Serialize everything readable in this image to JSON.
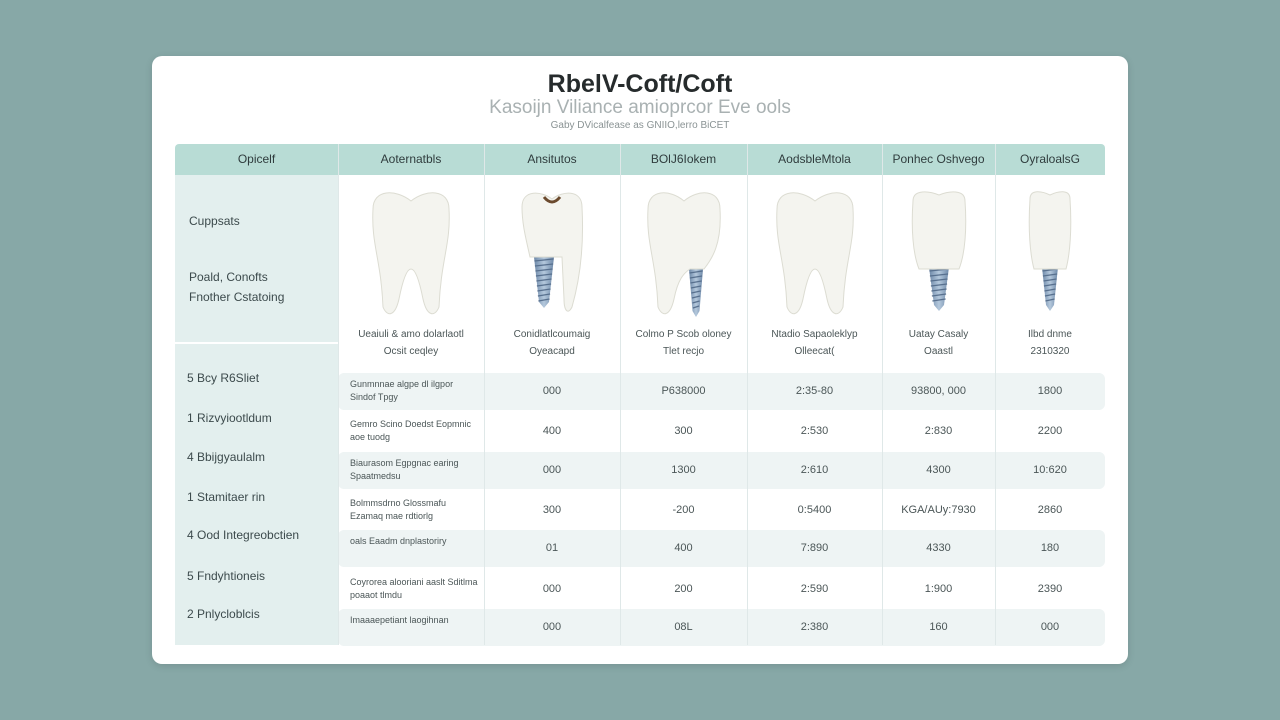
{
  "header": {
    "title": "RbelV-Coft/Coft",
    "subtitle": "Kasoijn Viliance amioprcor Eve ools",
    "note": "Gaby DVicalfease as GNIIO,lerro BiCET"
  },
  "columns": [
    "Opicelf",
    "Aoternatbls",
    "Ansitutos",
    "BOlJ6Iokem",
    "AodsbleMtola",
    "Ponhec Oshvego",
    "OyraloalsG"
  ],
  "left_panel": {
    "heading": "Cuppsats",
    "line1": "Poald, Conofts",
    "line2": "Fnother Cstatoing"
  },
  "images": [
    {
      "type": "natural-tooth",
      "caption1": "Ueaiuli & amo dolarlaotl",
      "caption2": "Ocsit ceqley"
    },
    {
      "type": "implant-crown-cavity",
      "caption1": "Conidlatlcoumaig",
      "caption2": "Oyeacapd"
    },
    {
      "type": "tooth-partial-implant",
      "caption1": "Colmo P Scob oloney",
      "caption2": "Tlet recjo"
    },
    {
      "type": "natural-tooth",
      "caption1": "Ntadio Sapaoleklyp",
      "caption2": "Olleecat("
    },
    {
      "type": "implant-crown",
      "caption1": "Uatay Casaly",
      "caption2": "Oaastl"
    },
    {
      "type": "implant-crown-narrow",
      "caption1": "Ilbd dnme",
      "caption2": "2310320"
    }
  ],
  "rows": [
    {
      "label": "5 Bcy R6Sliet",
      "desc": "Gunmnnae algpe dl ilgpor Sindof Tpgy",
      "values": [
        "000",
        "P638000",
        "2:35-80",
        "93800, 000",
        "1800"
      ]
    },
    {
      "label": "1 Rizvyiootldum",
      "desc": "Gemro Scino Doedst Eopmnic aoe tuodg",
      "values": [
        "400",
        "300",
        "2:530",
        "2:830",
        "2200"
      ]
    },
    {
      "label": "4 Bbijgyaulalm",
      "desc": "Biaurasom Egpgnac earing Spaatmedsu",
      "values": [
        "000",
        "1300",
        "2:610",
        "4300",
        "10:620"
      ]
    },
    {
      "label": "1 Stamitaer rin",
      "desc": "Bolmmsdrno Glossmafu Ezamaq mae rdtiorlg",
      "values": [
        "300",
        "-200",
        "0:5400",
        "KGA/AUy:7930",
        "2860"
      ]
    },
    {
      "label": "4 Ood Integreobctien",
      "desc": "oals Eaadm dnplastoriry",
      "values": [
        "01",
        "400",
        "7:890",
        "4330",
        "180"
      ]
    },
    {
      "label": "5 Fndyhtioneis",
      "desc": "Coyrorea alooriani aaslt Sditlma poaaot tlmdu",
      "values": [
        "000",
        "200",
        "2:590",
        "1:900",
        "2390"
      ]
    },
    {
      "label": "2 Pnlycloblcis",
      "desc": "Imaaaepetiant laogihnan",
      "values": [
        "000",
        "08L",
        "2:380",
        "160",
        "000"
      ]
    }
  ],
  "colors": {
    "background": "#87a8a7",
    "header": "#b8dcd5",
    "left_panel": "#e3efee",
    "band": "#eef4f4",
    "screw": "#8aa6c4"
  }
}
